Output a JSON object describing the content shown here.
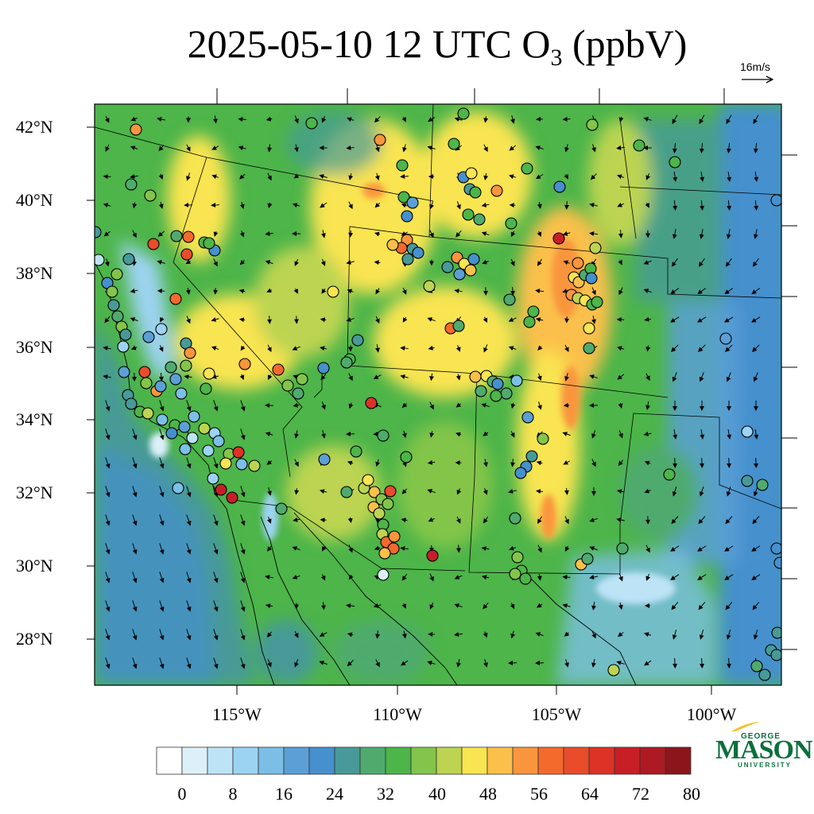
{
  "title": {
    "date": "2025-05-10",
    "hour": "12",
    "tz": "UTC",
    "species": "O",
    "species_sub": "3",
    "units": "(ppbV)"
  },
  "wind_reference": {
    "label": "16m/s"
  },
  "latitude_labels": [
    "42°N",
    "40°N",
    "38°N",
    "36°N",
    "34°N",
    "32°N",
    "30°N",
    "28°N"
  ],
  "longitude_labels": [
    "115°W",
    "110°W",
    "105°W",
    "100°W"
  ],
  "colorbar": {
    "labels": [
      "0",
      "8",
      "16",
      "24",
      "32",
      "40",
      "48",
      "56",
      "64",
      "72",
      "80"
    ],
    "colors": [
      "#ffffff",
      "#dcf0fa",
      "#bde3f6",
      "#9dd3f2",
      "#7cbfe6",
      "#5b9fd6",
      "#4590cd",
      "#479a98",
      "#4faa6e",
      "#4db549",
      "#83c54a",
      "#bcd451",
      "#f9e451",
      "#fbc04b",
      "#f9953d",
      "#f4692c",
      "#e84c2a",
      "#dc3326",
      "#c81f26",
      "#ad1a23",
      "#8c151c"
    ]
  },
  "logo": {
    "line1": "GEORGE",
    "line2": "MASON",
    "line3": "UNIVERSITY"
  }
}
